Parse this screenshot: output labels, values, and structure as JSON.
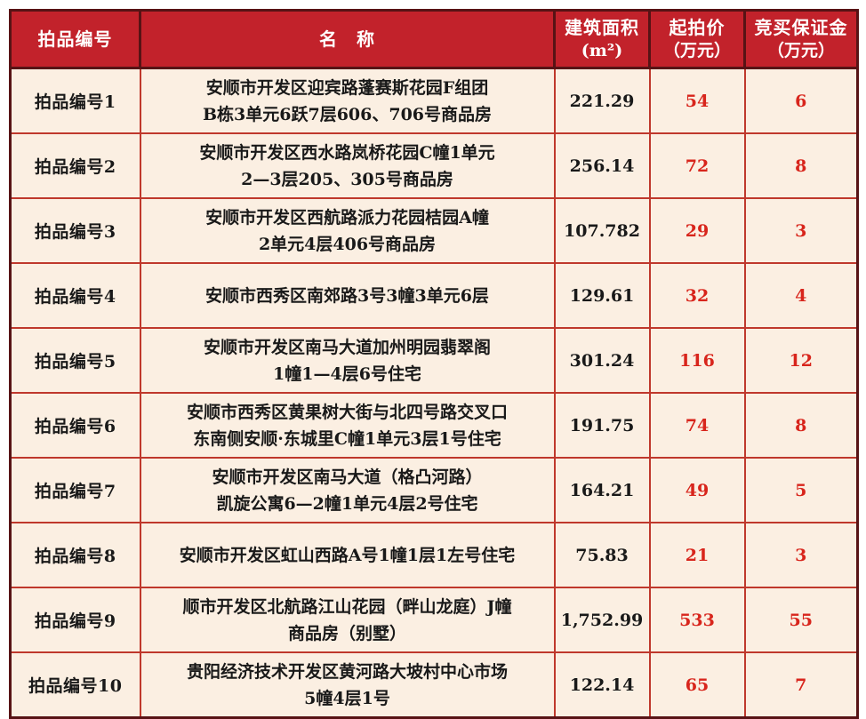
{
  "colors": {
    "header_bg": "#c2222b",
    "header_text": "#ffffff",
    "cell_bg": "#fbefe2",
    "grid_line": "#bf382c",
    "outer_border": "#571315",
    "body_text": "#191919",
    "price_text": "#d8251c"
  },
  "table": {
    "headers": {
      "lot": "拍品编号",
      "name": "名　称",
      "area_line1": "建筑面积",
      "area_line2": "(m²)",
      "price_line1": "起拍价",
      "price_line2": "（万元）",
      "deposit_line1": "竞买保证金",
      "deposit_line2": "（万元）"
    },
    "rows": [
      {
        "lot": "拍品编号1",
        "name1": "安顺市开发区迎宾路蓬赛斯花园F组团",
        "name2": "B栋3单元6跃7层606、706号商品房",
        "area": "221.29",
        "price": "54",
        "deposit": "6"
      },
      {
        "lot": "拍品编号2",
        "name1": "安顺市开发区西水路岚桥花园C幢1单元",
        "name2": "2—3层205、305号商品房",
        "area": "256.14",
        "price": "72",
        "deposit": "8"
      },
      {
        "lot": "拍品编号3",
        "name1": "安顺市开发区西航路派力花园桔园A幢",
        "name2": "2单元4层406号商品房",
        "area": "107.782",
        "price": "29",
        "deposit": "3"
      },
      {
        "lot": "拍品编号4",
        "name1": "安顺市西秀区南郊路3号3幢3单元6层",
        "name2": "",
        "area": "129.61",
        "price": "32",
        "deposit": "4"
      },
      {
        "lot": "拍品编号5",
        "name1": "安顺市开发区南马大道加州明园翡翠阁",
        "name2": "1幢1—4层6号住宅",
        "area": "301.24",
        "price": "116",
        "deposit": "12"
      },
      {
        "lot": "拍品编号6",
        "name1": "安顺市西秀区黄果树大街与北四号路交叉口",
        "name2": "东南侧安顺·东城里C幢1单元3层1号住宅",
        "area": "191.75",
        "price": "74",
        "deposit": "8"
      },
      {
        "lot": "拍品编号7",
        "name1": "安顺市开发区南马大道（格凸河路）",
        "name2": "凯旋公寓6—2幢1单元4层2号住宅",
        "area": "164.21",
        "price": "49",
        "deposit": "5"
      },
      {
        "lot": "拍品编号8",
        "name1": "安顺市开发区虹山西路A号1幢1层1左号住宅",
        "name2": "",
        "area": "75.83",
        "price": "21",
        "deposit": "3"
      },
      {
        "lot": "拍品编号9",
        "name1": "顺市开发区北航路江山花园（畔山龙庭）J幢",
        "name2": "商品房（别墅）",
        "area": "1,752.99",
        "price": "533",
        "deposit": "55"
      },
      {
        "lot": "拍品编号10",
        "name1": "贵阳经济技术开发区黄河路大坡村中心市场",
        "name2": "5幢4层1号",
        "area": "122.14",
        "price": "65",
        "deposit": "7"
      }
    ]
  }
}
